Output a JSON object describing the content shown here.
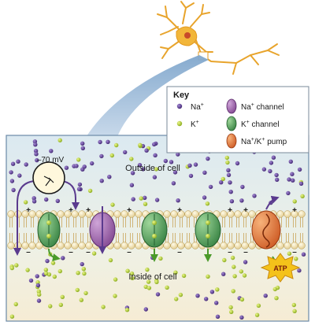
{
  "key": {
    "title": "Key",
    "items": [
      {
        "symbol": "Na",
        "sup": "+",
        "label": ""
      },
      {
        "symbol": "K",
        "sup": "+",
        "label": ""
      },
      {
        "symbol": "Na",
        "sup": "+",
        "label": "channel"
      },
      {
        "symbol": "K",
        "sup": "+",
        "label": "channel"
      },
      {
        "symbol": "Na",
        "sup": "+",
        "mid": "/K",
        "sup2": "+",
        "label": "pump"
      }
    ]
  },
  "meter": {
    "label": "–70 mV"
  },
  "regions": {
    "outside": "Outside of cell",
    "inside": "Inside of cell"
  },
  "charges": {
    "positive": "+",
    "negative": "–"
  },
  "atp": {
    "label": "ATP"
  },
  "colors": {
    "sodium": "#5a3a8e",
    "potassium": "#b8d830",
    "na_channel": "#9b5aa6",
    "k_channel": "#3a8f4a",
    "pump": "#e06a2a",
    "extracellular": "#dbe9f1",
    "intracellular": "#f6ecd4",
    "lipid_head": "#f4e4b4",
    "neuron": "#f2b63a"
  }
}
